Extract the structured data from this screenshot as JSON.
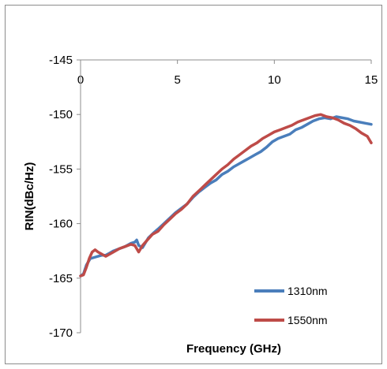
{
  "chart_data": {
    "type": "line",
    "title": "",
    "xlabel": "Frequency (GHz)",
    "ylabel": "RIN(dBc/Hz)",
    "xlim": [
      0,
      15
    ],
    "ylim": [
      -170,
      -145
    ],
    "x_ticks": [
      0,
      5,
      10,
      15
    ],
    "y_ticks": [
      -145,
      -150,
      -155,
      -160,
      -165,
      -170
    ],
    "x_tick_labels": [
      "0",
      "5",
      "10",
      "15"
    ],
    "y_tick_labels": [
      "-145",
      "-150",
      "-155",
      "-160",
      "-165",
      "-170"
    ],
    "x_axis_position": "top",
    "grid": false,
    "legend_position": "bottom-right",
    "series": [
      {
        "name": "1310nm",
        "color": "#4a7ebb",
        "x": [
          0,
          0.15,
          0.3,
          0.5,
          0.7,
          0.9,
          1.1,
          1.3,
          1.5,
          1.7,
          2.0,
          2.3,
          2.6,
          2.8,
          2.9,
          3.0,
          3.2,
          3.5,
          3.8,
          4.0,
          4.3,
          4.6,
          4.9,
          5.2,
          5.5,
          5.8,
          6.1,
          6.4,
          6.7,
          7.0,
          7.3,
          7.6,
          7.9,
          8.1,
          8.4,
          8.7,
          9.0,
          9.3,
          9.6,
          9.9,
          10.2,
          10.5,
          10.8,
          11.1,
          11.4,
          11.7,
          12.0,
          12.3,
          12.6,
          12.9,
          13.2,
          13.5,
          13.8,
          14.1,
          14.4,
          14.7,
          15.0
        ],
        "y": [
          -164.8,
          -164.6,
          -163.8,
          -163.2,
          -163.1,
          -163.0,
          -162.9,
          -162.9,
          -162.7,
          -162.5,
          -162.3,
          -162.1,
          -161.8,
          -161.7,
          -161.5,
          -162.0,
          -162.2,
          -161.3,
          -160.8,
          -160.5,
          -160.0,
          -159.5,
          -159.0,
          -158.6,
          -158.2,
          -157.6,
          -157.1,
          -156.7,
          -156.3,
          -156.0,
          -155.5,
          -155.2,
          -154.8,
          -154.6,
          -154.3,
          -154.0,
          -153.7,
          -153.4,
          -153.0,
          -152.5,
          -152.2,
          -152.0,
          -151.8,
          -151.4,
          -151.2,
          -150.9,
          -150.6,
          -150.4,
          -150.3,
          -150.4,
          -150.2,
          -150.3,
          -150.4,
          -150.6,
          -150.7,
          -150.8,
          -150.9
        ]
      },
      {
        "name": "1550nm",
        "color": "#be4b48",
        "x": [
          0,
          0.15,
          0.3,
          0.45,
          0.6,
          0.75,
          0.9,
          1.1,
          1.3,
          1.5,
          1.7,
          2.0,
          2.3,
          2.6,
          2.8,
          3.0,
          3.2,
          3.4,
          3.7,
          4.0,
          4.3,
          4.6,
          4.9,
          5.2,
          5.5,
          5.8,
          6.1,
          6.4,
          6.7,
          7.0,
          7.3,
          7.6,
          7.9,
          8.2,
          8.5,
          8.8,
          9.1,
          9.4,
          9.7,
          10.0,
          10.3,
          10.6,
          10.9,
          11.2,
          11.5,
          11.8,
          12.1,
          12.4,
          12.7,
          13.0,
          13.3,
          13.6,
          13.9,
          14.2,
          14.5,
          14.8,
          15.0
        ],
        "y": [
          -164.8,
          -164.7,
          -164.0,
          -163.2,
          -162.6,
          -162.4,
          -162.6,
          -162.8,
          -163.0,
          -162.8,
          -162.6,
          -162.3,
          -162.1,
          -161.9,
          -162.0,
          -162.6,
          -162.0,
          -161.6,
          -161.0,
          -160.7,
          -160.1,
          -159.6,
          -159.1,
          -158.7,
          -158.2,
          -157.5,
          -157.0,
          -156.5,
          -156.0,
          -155.5,
          -155.0,
          -154.6,
          -154.1,
          -153.7,
          -153.3,
          -152.9,
          -152.6,
          -152.2,
          -151.9,
          -151.6,
          -151.4,
          -151.2,
          -151.0,
          -150.7,
          -150.5,
          -150.3,
          -150.1,
          -150.0,
          -150.2,
          -150.3,
          -150.5,
          -150.8,
          -151.0,
          -151.3,
          -151.7,
          -152.0,
          -152.6
        ]
      }
    ]
  }
}
